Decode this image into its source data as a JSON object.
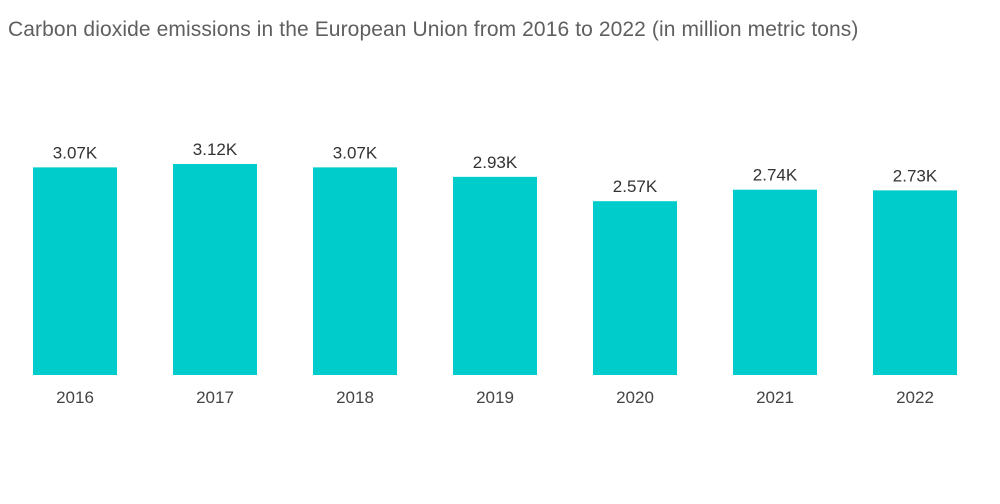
{
  "chart_data": {
    "type": "bar",
    "title": "Carbon dioxide emissions in the European Union from 2016 to 2022 (in million metric tons)",
    "xlabel": "",
    "ylabel": "",
    "categories": [
      "2016",
      "2017",
      "2018",
      "2019",
      "2020",
      "2021",
      "2022"
    ],
    "values": [
      3070,
      3120,
      3070,
      2930,
      2570,
      2740,
      2730
    ],
    "data_labels": [
      "3.07K",
      "3.12K",
      "3.07K",
      "2.93K",
      "2.57K",
      "2.74K",
      "2.73K"
    ],
    "ylim": [
      0,
      3120
    ],
    "grid": false,
    "legend": "none",
    "bar_color": "#00cccc"
  }
}
